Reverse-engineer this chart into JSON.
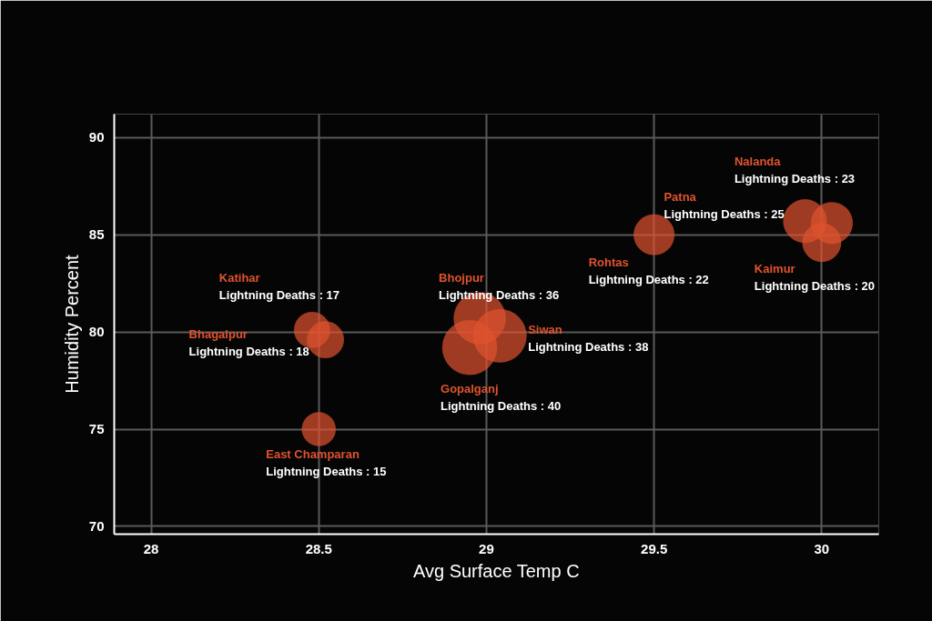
{
  "chart_data": {
    "type": "bubble",
    "xlabel": "Avg Surface Temp C",
    "ylabel": "Humidity Percent",
    "x": [
      28.48,
      28.52,
      28.5,
      28.98,
      29.04,
      28.95,
      29.5,
      29.95,
      30.03,
      30.0
    ],
    "values": [
      80.1,
      79.6,
      75.0,
      80.7,
      79.8,
      79.2,
      85.0,
      85.7,
      85.6,
      84.6
    ],
    "sizes": [
      0.43,
      0.45,
      0.38,
      0.9,
      0.95,
      1,
      0.55,
      0.63,
      0.58,
      0.5
    ],
    "annotations": [
      "Katihar",
      "Lightning Deaths : 17",
      "Bhagalpur",
      "Lightning Deaths : 18",
      "East Champaran",
      "Lightning Deaths : 15",
      "Bhojpur",
      "Lightning Deaths : 36",
      "Siwan",
      "Lightning Deaths : 38",
      "Gopalganj",
      "Lightning Deaths : 40",
      "Rohtas",
      "Lightning Deaths : 22",
      "Patna",
      "Lightning Deaths : 25",
      "Nalanda",
      "Lightning Deaths : 23",
      "Kaimur",
      "Lightning Deaths : 20"
    ],
    "color": "#e0532f",
    "xlim": [
      27.89,
      30.17
    ],
    "ylim": [
      69.6,
      91.2
    ],
    "xticks": [
      28,
      28.5,
      29,
      29.5,
      30
    ],
    "yticks": [
      70,
      75,
      80,
      85,
      90
    ],
    "grid": true
  }
}
